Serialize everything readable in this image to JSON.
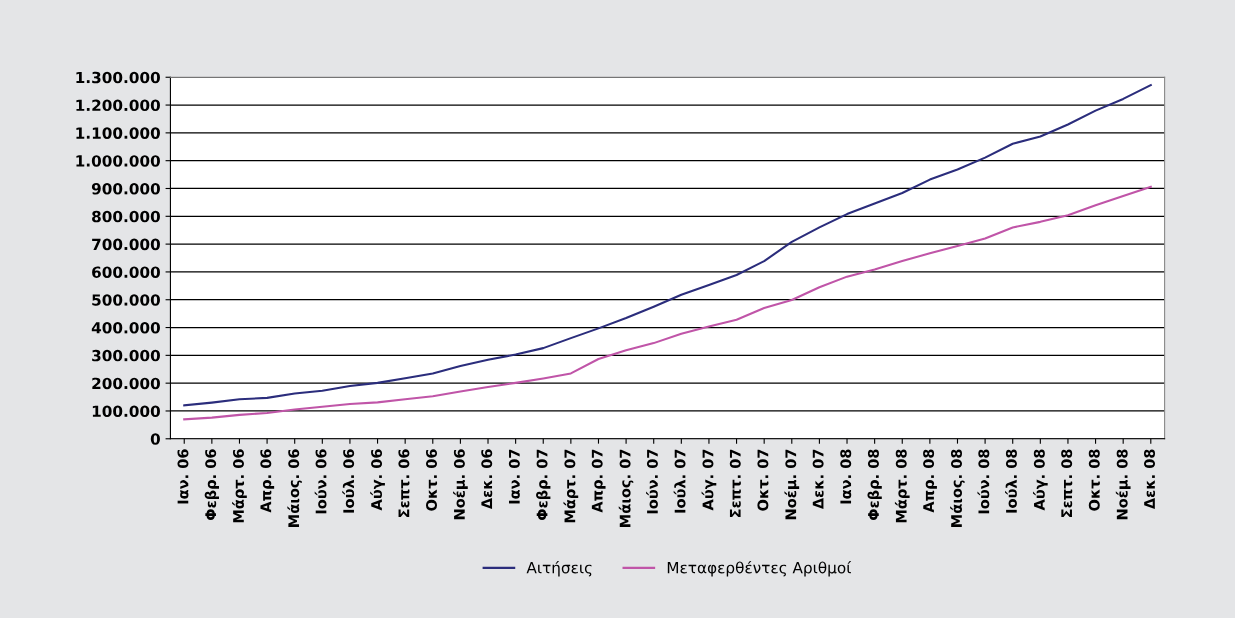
{
  "chart_data": {
    "type": "line",
    "categories": [
      "Ιαν. 06",
      "Φεβρ. 06",
      "Μάρτ. 06",
      "Απρ. 06",
      "Μάιος. 06",
      "Ιούν. 06",
      "Ιούλ. 06",
      "Αύγ. 06",
      "Σεπτ. 06",
      "Οκτ. 06",
      "Νοέμ. 06",
      "Δεκ. 06",
      "Ιαν. 07",
      "Φεβρ. 07",
      "Μάρτ. 07",
      "Απρ. 07",
      "Μάιος. 07",
      "Ιούν. 07",
      "Ιούλ. 07",
      "Αύγ. 07",
      "Σεπτ. 07",
      "Οκτ. 07",
      "Νοέμ. 07",
      "Δεκ. 07",
      "Ιαν. 08",
      "Φεβρ. 08",
      "Μάρτ. 08",
      "Απρ. 08",
      "Μάιος. 08",
      "Ιούν. 08",
      "Ιούλ. 08",
      "Αύγ. 08",
      "Σεπτ. 08",
      "Οκτ. 08",
      "Νοέμ. 08",
      "Δεκ. 08"
    ],
    "series": [
      {
        "name": "Αιτήσεις",
        "color": "#2b2d7c",
        "values": [
          120000,
          130000,
          142000,
          147000,
          163000,
          173000,
          190000,
          201000,
          218000,
          235000,
          262000,
          284000,
          303000,
          326000,
          362000,
          397000,
          434000,
          475000,
          518000,
          553000,
          589000,
          639000,
          708000,
          760000,
          808000,
          846000,
          884000,
          932000,
          968000,
          1011000,
          1061000,
          1087000,
          1130000,
          1180000,
          1222000,
          1272000
        ]
      },
      {
        "name": "Μεταφερθέντες Αριθμοί",
        "color": "#c055a8",
        "values": [
          70000,
          76000,
          86000,
          93000,
          105000,
          115000,
          125000,
          131000,
          142000,
          153000,
          170000,
          186000,
          201000,
          217000,
          235000,
          287000,
          318000,
          344000,
          378000,
          404000,
          428000,
          470000,
          499000,
          545000,
          583000,
          609000,
          639000,
          667000,
          693000,
          720000,
          760000,
          780000,
          804000,
          840000,
          873000,
          906000
        ]
      }
    ],
    "ylim": [
      0,
      1300000
    ],
    "yticks": [
      0,
      {
        "value": 100000,
        "label": "100.000"
      },
      {
        "value": 200000,
        "label": "200.000"
      },
      {
        "value": 300000,
        "label": "300.000"
      },
      {
        "value": 400000,
        "label": "400.000"
      },
      {
        "value": 500000,
        "label": "500.000"
      },
      {
        "value": 600000,
        "label": "600.000"
      },
      {
        "value": 700000,
        "label": "700.000"
      },
      {
        "value": 800000,
        "label": "800.000"
      },
      {
        "value": 900000,
        "label": "900.000"
      },
      {
        "value": 1000000,
        "label": "1.000.000"
      },
      {
        "value": 1100000,
        "label": "1.100.000"
      },
      {
        "value": 1200000,
        "label": "1.200.000"
      },
      {
        "value": 1300000,
        "label": "1.300.000"
      }
    ],
    "grid": "y",
    "legend": "bottom",
    "marker": "none",
    "line_style": "solid"
  }
}
